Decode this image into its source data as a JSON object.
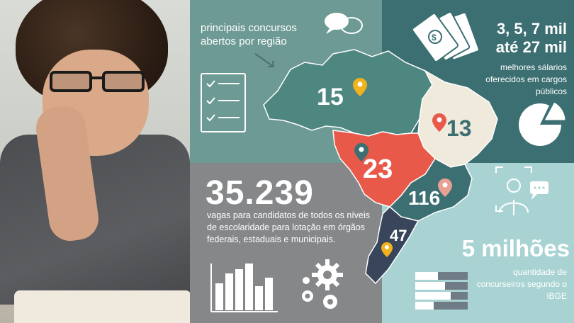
{
  "region": {
    "title": "principais concursos abertos por região"
  },
  "map": {
    "north": "15",
    "northeast": "13",
    "center_west": "23",
    "southeast": "116",
    "south": "47"
  },
  "salary": {
    "line1": "3, 5, 7 mil",
    "line2": "até 27 mil",
    "desc": "melhores sálarios oferecidos em cargos públicos"
  },
  "vagas": {
    "count": "35.239",
    "desc": "vagas  para candidatos de todos os níveis de escolaridade para lotação em órgãos federais, estaduais e municipais."
  },
  "concurseiros": {
    "count": "5 milhões",
    "desc": "quantidade de concurseiros segundo o IBGE"
  },
  "colors": {
    "teal": "#6d9a94",
    "dark_teal": "#3c6f72",
    "gray": "#858789",
    "light_teal": "#a9d3d3",
    "coral": "#e8594a",
    "cream": "#efeadb",
    "navy": "#38455a",
    "pin_yellow": "#f2b21e"
  },
  "icons": [
    "chat-bubbles-icon",
    "checklist-icon",
    "money-bills-icon",
    "pie-chart-icon",
    "bar-chart-icon",
    "gears-icon",
    "person-focus-icon",
    "stacked-bars-icon",
    "location-pin-icon"
  ]
}
